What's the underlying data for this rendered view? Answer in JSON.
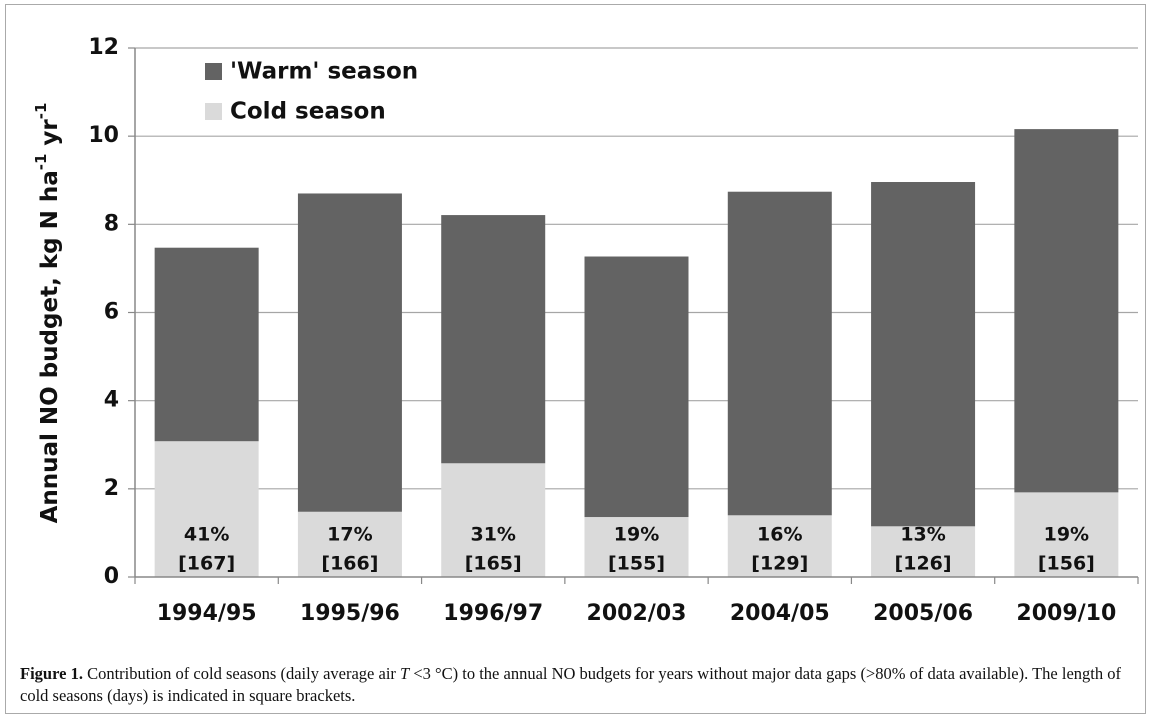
{
  "chart_data": {
    "type": "stacked_bar",
    "y_label": [
      "Annual NO budget, kg N ha",
      "-1",
      " yr",
      "-1"
    ],
    "categories": [
      "1994/95",
      "1995/96",
      "1996/97",
      "2002/03",
      "2004/05",
      "2005/06",
      "2009/10"
    ],
    "series": [
      {
        "name": "'Warm' season",
        "color": "#636363",
        "values": [
          4.39,
          7.22,
          5.63,
          5.91,
          7.34,
          7.81,
          8.24
        ]
      },
      {
        "name": "Cold season",
        "color": "#dadada",
        "values": [
          3.08,
          1.48,
          2.58,
          1.36,
          1.4,
          1.15,
          1.92
        ]
      }
    ],
    "share_labels": [
      "41%",
      "17%",
      "31%",
      "19%",
      "16%",
      "13%",
      "19%"
    ],
    "days_labels": [
      "[167]",
      "[166]",
      "[165]",
      "[155]",
      "[129]",
      "[126]",
      "[156]"
    ],
    "ylim": [
      0,
      12
    ],
    "yticks": [
      0,
      2,
      4,
      6,
      8,
      10,
      12
    ],
    "grid": true,
    "legend": "top-left"
  },
  "caption": {
    "label": "Figure 1.",
    "before": " Contribution of cold seasons (daily average air ",
    "variable": "T",
    "after": " <3 °C) to the annual NO budgets for years without major data gaps (>80% of data available). The length of cold seasons (days) is indicated in square brackets."
  }
}
